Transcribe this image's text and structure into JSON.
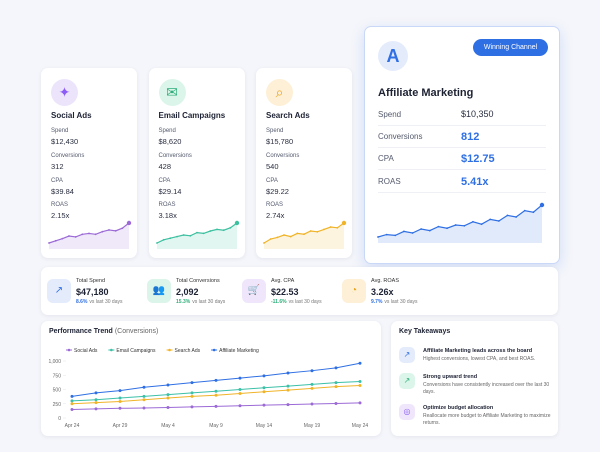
{
  "channels": [
    {
      "name": "Social Ads",
      "spend_label": "Spend",
      "spend": "$12,430",
      "conv_label": "Conversions",
      "conv": "312",
      "cpa_label": "CPA",
      "cpa": "$39.84",
      "roas_label": "ROAS",
      "roas": "2.15x",
      "color": "#9b6ad6",
      "spark": [
        3,
        3.5,
        4,
        4.6,
        4.4,
        5,
        5.2,
        5,
        5.6,
        6,
        5.8,
        6.4,
        7.6
      ]
    },
    {
      "name": "Email Campaigns",
      "spend_label": "Spend",
      "spend": "$8,620",
      "conv_label": "Conversions",
      "conv": "428",
      "cpa_label": "CPA",
      "cpa": "$29.14",
      "roas_label": "ROAS",
      "roas": "3.18x",
      "color": "#3cc0a0",
      "spark": [
        3,
        3.8,
        4.2,
        4.6,
        5,
        4.8,
        5.6,
        5.4,
        6,
        6.4,
        6.2,
        6.8,
        8
      ]
    },
    {
      "name": "Search Ads",
      "spend_label": "Spend",
      "spend": "$15,780",
      "conv_label": "Conversions",
      "conv": "540",
      "cpa_label": "CPA",
      "cpa": "$29.22",
      "roas_label": "ROAS",
      "roas": "2.74x",
      "color": "#f0b429",
      "spark": [
        3,
        4,
        4.4,
        5,
        4.6,
        5.4,
        5.2,
        6,
        5.8,
        6.4,
        7,
        6.8,
        8
      ]
    }
  ],
  "winner": {
    "badge": "Winning Channel",
    "name": "Affiliate Marketing",
    "spend_label": "Spend",
    "spend": "$10,350",
    "conv_label": "Conversions",
    "conv": "812",
    "cpa_label": "CPA",
    "cpa": "$12.75",
    "roas_label": "ROAS",
    "roas": "5.41x",
    "color": "#2f6fe4",
    "spark": [
      2,
      2.6,
      2.4,
      3.4,
      3,
      4,
      3.6,
      4.6,
      4.2,
      5,
      4.8,
      5.8,
      5.2,
      6.4,
      6,
      7.4,
      7,
      8.6,
      8.2,
      10
    ]
  },
  "kpis": [
    {
      "label": "Total Spend",
      "value": "$47,180",
      "change": "8.6%",
      "note": "vs last 30 days",
      "color": "#2f6fe4"
    },
    {
      "label": "Total Conversions",
      "value": "2,092",
      "change": "15.3%",
      "note": "vs last 30 days",
      "color": "#2fae7a"
    },
    {
      "label": "Avg. CPA",
      "value": "$22.53",
      "change": "-11.6%",
      "note": "vs last 30 days",
      "color": "#2fae7a"
    },
    {
      "label": "Avg. ROAS",
      "value": "3.26x",
      "change": "9.7%",
      "note": "vs last 30 days",
      "color": "#2f6fe4"
    }
  ],
  "chart_data": {
    "type": "line",
    "title": "Performance Trend",
    "subtitle": "(Conversions)",
    "categories": [
      "Apr 24",
      null,
      "Apr 29",
      null,
      "May 4",
      null,
      "May 9",
      null,
      "May 14",
      null,
      "May 19",
      null,
      "May 24"
    ],
    "series": [
      {
        "name": "Social Ads",
        "color": "#9b6ad6",
        "values": [
          150,
          160,
          170,
          175,
          185,
          195,
          205,
          215,
          225,
          235,
          245,
          255,
          265
        ]
      },
      {
        "name": "Email Campaigns",
        "color": "#3cc0a8",
        "values": [
          300,
          320,
          350,
          380,
          410,
          440,
          470,
          500,
          530,
          560,
          590,
          620,
          640
        ]
      },
      {
        "name": "Search Ads",
        "color": "#f0b429",
        "values": [
          250,
          270,
          290,
          320,
          350,
          380,
          400,
          430,
          460,
          490,
          520,
          550,
          570
        ]
      },
      {
        "name": "Affiliate Marketing",
        "color": "#2f6fe4",
        "values": [
          380,
          440,
          480,
          540,
          580,
          620,
          660,
          700,
          740,
          790,
          830,
          880,
          960
        ]
      }
    ],
    "ylim": [
      0,
      1000
    ],
    "yticks": [
      0,
      250,
      500,
      750,
      {
        "value": 1000,
        "label": "1,000"
      }
    ],
    "grid": false
  },
  "takeaways": {
    "title": "Key Takeaways",
    "items": [
      {
        "title": "Affiliate Marketing leads across the board",
        "text": "Highest conversions, lowest CPA, and best ROAS."
      },
      {
        "title": "Strong upward trend",
        "text": "Conversions have consistently increased over the last 30 days."
      },
      {
        "title": "Optimize budget allocation",
        "text": "Reallocate more budget to Affiliate Marketing to maximize returns."
      }
    ]
  }
}
